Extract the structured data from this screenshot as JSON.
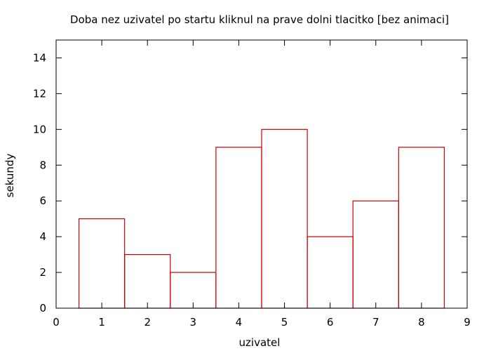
{
  "chart_data": {
    "type": "bar",
    "title": "Doba nez uzivatel po startu kliknul na prave dolni tlacitko [bez animaci]",
    "xlabel": "uzivatel",
    "ylabel": "sekundy",
    "x": [
      1,
      2,
      3,
      4,
      5,
      6,
      7,
      8
    ],
    "values": [
      5,
      3,
      2,
      9,
      10,
      4,
      6,
      9
    ],
    "bar_width": 1,
    "xlim": [
      0,
      9
    ],
    "ylim": [
      0,
      15
    ],
    "xticks": [
      "0",
      "1",
      "2",
      "3",
      "4",
      "5",
      "6",
      "7",
      "8",
      "9"
    ],
    "yticks": [
      "0",
      "2",
      "4",
      "6",
      "8",
      "10",
      "12",
      "14"
    ],
    "grid": false,
    "legend": "none",
    "bar_color": "#cc0000"
  }
}
